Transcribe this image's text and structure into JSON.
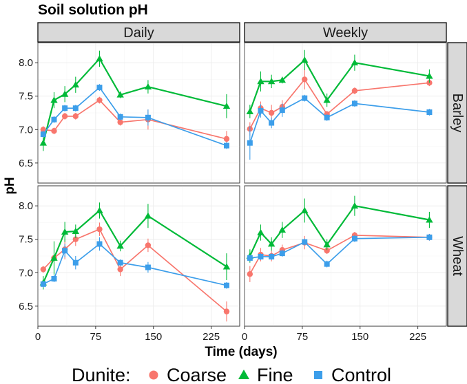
{
  "chart_data": {
    "type": "line",
    "title": "Soil solution pH",
    "xlabel": "Time (days)",
    "ylabel": "pH",
    "xlim": [
      0,
      262
    ],
    "ylim": [
      6.2,
      8.3
    ],
    "x_ticks": [
      0,
      75,
      150,
      225
    ],
    "x_tick_labels": [
      "0",
      "75",
      "150",
      "225"
    ],
    "y_ticks": [
      6.5,
      7.0,
      7.5,
      8.0
    ],
    "y_tick_labels": [
      "6.5",
      "7.0",
      "7.5",
      "8.0"
    ],
    "facet_columns": [
      "Daily",
      "Weekly"
    ],
    "facet_rows": [
      "Barley",
      "Wheat"
    ],
    "legend": {
      "title": "Dunite:",
      "position": "bottom",
      "entries": [
        {
          "name": "Coarse",
          "color": "#F8766D",
          "shape": "circle"
        },
        {
          "name": "Fine",
          "color": "#00BA38",
          "shape": "triangle"
        },
        {
          "name": "Control",
          "color": "#3C9EEA",
          "shape": "square"
        }
      ]
    },
    "panels": [
      {
        "row": "Barley",
        "col": "Daily",
        "series": [
          {
            "name": "Coarse",
            "x": [
              7,
              21,
              35,
              49,
              80,
              107,
              143,
              245
            ],
            "y": [
              7.0,
              6.98,
              7.2,
              7.2,
              7.44,
              7.11,
              7.15,
              6.86
            ],
            "err": [
              0.05,
              0.05,
              0.05,
              0.05,
              0.05,
              0.05,
              0.15,
              0.12
            ]
          },
          {
            "name": "Fine",
            "x": [
              7,
              21,
              35,
              49,
              80,
              107,
              143,
              245
            ],
            "y": [
              6.8,
              7.44,
              7.53,
              7.67,
              8.06,
              7.52,
              7.64,
              7.35
            ],
            "err": [
              0.12,
              0.12,
              0.12,
              0.12,
              0.12,
              0.05,
              0.1,
              0.18
            ]
          },
          {
            "name": "Control",
            "x": [
              7,
              21,
              35,
              49,
              80,
              107,
              143,
              245
            ],
            "y": [
              6.93,
              7.15,
              7.32,
              7.32,
              7.63,
              7.19,
              7.18,
              6.76
            ],
            "err": [
              0.05,
              0.05,
              0.05,
              0.05,
              0.05,
              0.05,
              0.12,
              0.05
            ]
          }
        ]
      },
      {
        "row": "Barley",
        "col": "Weekly",
        "series": [
          {
            "name": "Coarse",
            "x": [
              7,
              21,
              35,
              49,
              78,
              107,
              143,
              240
            ],
            "y": [
              7.01,
              7.32,
              7.25,
              7.34,
              7.75,
              7.23,
              7.58,
              7.7
            ],
            "err": [
              0.1,
              0.1,
              0.12,
              0.1,
              0.15,
              0.05,
              0.05,
              0.05
            ]
          },
          {
            "name": "Fine",
            "x": [
              7,
              21,
              35,
              49,
              78,
              107,
              143,
              240
            ],
            "y": [
              7.27,
              7.72,
              7.72,
              7.74,
              8.04,
              7.44,
              8.0,
              7.8
            ],
            "err": [
              0.1,
              0.15,
              0.1,
              0.05,
              0.15,
              0.1,
              0.12,
              0.1
            ]
          },
          {
            "name": "Control",
            "x": [
              7,
              21,
              35,
              49,
              78,
              107,
              143,
              240
            ],
            "y": [
              6.8,
              7.28,
              7.1,
              7.29,
              7.47,
              7.18,
              7.39,
              7.26
            ],
            "err": [
              0.25,
              0.1,
              0.08,
              0.1,
              0.05,
              0.05,
              0.05,
              0.05
            ]
          }
        ]
      },
      {
        "row": "Wheat",
        "col": "Daily",
        "series": [
          {
            "name": "Coarse",
            "x": [
              7,
              21,
              35,
              49,
              80,
              107,
              143,
              245
            ],
            "y": [
              7.05,
              7.22,
              7.35,
              7.5,
              7.65,
              7.05,
              7.41,
              6.42
            ],
            "err": [
              0.05,
              0.05,
              0.15,
              0.1,
              0.1,
              0.1,
              0.1,
              0.15
            ]
          },
          {
            "name": "Fine",
            "x": [
              7,
              21,
              35,
              49,
              80,
              107,
              143,
              245
            ],
            "y": [
              6.85,
              7.22,
              7.61,
              7.62,
              7.93,
              7.4,
              7.85,
              7.09
            ],
            "err": [
              0.1,
              0.25,
              0.15,
              0.1,
              0.12,
              0.08,
              0.18,
              0.2
            ]
          },
          {
            "name": "Control",
            "x": [
              7,
              21,
              35,
              49,
              80,
              107,
              143,
              245
            ],
            "y": [
              6.83,
              6.91,
              7.33,
              7.15,
              7.43,
              7.15,
              7.08,
              6.81
            ],
            "err": [
              0.05,
              0.05,
              0.1,
              0.1,
              0.1,
              0.05,
              0.08,
              0.05
            ]
          }
        ]
      },
      {
        "row": "Wheat",
        "col": "Weekly",
        "series": [
          {
            "name": "Coarse",
            "x": [
              7,
              21,
              35,
              49,
              78,
              107,
              143,
              240
            ],
            "y": [
              6.98,
              7.27,
              7.25,
              7.34,
              7.45,
              7.33,
              7.56,
              7.53
            ],
            "err": [
              0.12,
              0.1,
              0.08,
              0.08,
              0.1,
              0.05,
              0.05,
              0.05
            ]
          },
          {
            "name": "Fine",
            "x": [
              7,
              21,
              35,
              49,
              78,
              107,
              143,
              240
            ],
            "y": [
              7.25,
              7.6,
              7.43,
              7.64,
              7.93,
              7.42,
              8.0,
              7.79
            ],
            "err": [
              0.1,
              0.12,
              0.1,
              0.12,
              0.18,
              0.08,
              0.15,
              0.12
            ]
          },
          {
            "name": "Control",
            "x": [
              7,
              21,
              35,
              49,
              78,
              107,
              143,
              240
            ],
            "y": [
              7.22,
              7.24,
              7.24,
              7.29,
              7.46,
              7.13,
              7.51,
              7.53
            ],
            "err": [
              0.05,
              0.05,
              0.05,
              0.05,
              0.05,
              0.05,
              0.05,
              0.05
            ]
          }
        ]
      }
    ]
  }
}
